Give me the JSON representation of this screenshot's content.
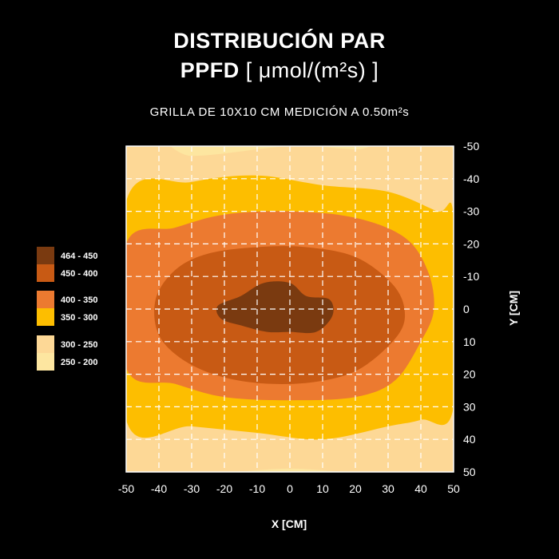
{
  "title_line1": "DISTRIBUCIÓN PAR",
  "title_line2_bold": "PPFD",
  "title_line2_unit": "[ μmol/(m²s) ]",
  "subtitle": "GRILLA DE 10X10 CM MEDICIÓN A 0.50m²s",
  "chart_data": {
    "type": "contour",
    "xlabel": "X [CM]",
    "ylabel": "Y [CM]",
    "xlim": [
      -50,
      50
    ],
    "ylim": [
      -50,
      50
    ],
    "x_ticks": [
      -50,
      -40,
      -30,
      -20,
      -10,
      0,
      10,
      20,
      30,
      40,
      50
    ],
    "y_ticks": [
      -50,
      -40,
      -30,
      -20,
      -10,
      0,
      10,
      20,
      30,
      40,
      50
    ],
    "y_axis_inverted": true,
    "grid": true,
    "legend_position": "left",
    "legend": [
      {
        "label": "464 - 450",
        "color": "#7a3a10"
      },
      {
        "label": "450 - 400",
        "color": "#c85a14"
      },
      {
        "label": "400 - 350",
        "color": "#ec7a30"
      },
      {
        "label": "350 - 300",
        "color": "#fdbe00"
      },
      {
        "label": "300 - 250",
        "color": "#fdd896"
      },
      {
        "label": "250 - 200",
        "color": "#fde6a0"
      }
    ],
    "regions": [
      {
        "range": "250 - 200",
        "level": 200
      },
      {
        "range": "300 - 250",
        "level": 250,
        "outline": [
          [
            -50,
            -50
          ],
          [
            -30,
            -47
          ],
          [
            0,
            -50
          ],
          [
            20,
            -49
          ],
          [
            50,
            -48
          ],
          [
            50,
            50
          ],
          [
            20,
            50
          ],
          [
            0,
            49
          ],
          [
            -20,
            50
          ],
          [
            -50,
            50
          ]
        ]
      },
      {
        "range": "350 - 300",
        "level": 300,
        "outline": [
          [
            -50,
            -33
          ],
          [
            -30,
            -39
          ],
          [
            -10,
            -41
          ],
          [
            10,
            -38
          ],
          [
            30,
            -36
          ],
          [
            45,
            -30
          ],
          [
            50,
            -28
          ],
          [
            50,
            30
          ],
          [
            40,
            34
          ],
          [
            30,
            36
          ],
          [
            10,
            40
          ],
          [
            -10,
            38
          ],
          [
            -30,
            36
          ],
          [
            -50,
            34
          ]
        ]
      },
      {
        "range": "400 - 350",
        "level": 350,
        "outline": [
          [
            -50,
            -20
          ],
          [
            -35,
            -25
          ],
          [
            -20,
            -29
          ],
          [
            0,
            -30
          ],
          [
            20,
            -28
          ],
          [
            35,
            -22
          ],
          [
            42,
            -12
          ],
          [
            44,
            0
          ],
          [
            40,
            10
          ],
          [
            32,
            22
          ],
          [
            20,
            27
          ],
          [
            0,
            28
          ],
          [
            -20,
            27
          ],
          [
            -35,
            23
          ],
          [
            -50,
            18
          ]
        ]
      },
      {
        "range": "450 - 400",
        "level": 400,
        "outline": [
          [
            -41,
            -3
          ],
          [
            -35,
            -12
          ],
          [
            -25,
            -17
          ],
          [
            -10,
            -19
          ],
          [
            5,
            -19
          ],
          [
            20,
            -16
          ],
          [
            31,
            -8
          ],
          [
            35,
            0
          ],
          [
            33,
            8
          ],
          [
            22,
            18
          ],
          [
            10,
            22
          ],
          [
            -5,
            23
          ],
          [
            -20,
            21
          ],
          [
            -32,
            16
          ],
          [
            -40,
            8
          ]
        ]
      },
      {
        "range": "464 - 450",
        "level": 450,
        "outline": [
          [
            -22,
            -1
          ],
          [
            -15,
            -4
          ],
          [
            -8,
            -8
          ],
          [
            0,
            -8
          ],
          [
            5,
            -4
          ],
          [
            12,
            -3
          ],
          [
            13,
            2
          ],
          [
            8,
            7
          ],
          [
            0,
            7
          ],
          [
            -7,
            7
          ],
          [
            -15,
            5
          ],
          [
            -21,
            3
          ]
        ]
      }
    ]
  }
}
